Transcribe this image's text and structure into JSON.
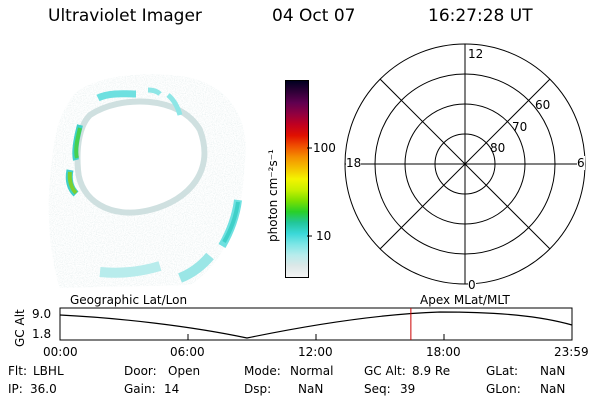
{
  "header": {
    "instrument": "Ultraviolet Imager",
    "date": "04 Oct 07",
    "time": "16:27:28 UT"
  },
  "colorbar": {
    "unit_label": "photon cm⁻²s⁻¹",
    "ticks": [
      "100",
      "10"
    ],
    "colors": [
      "#f4f4f4",
      "#dde8e8",
      "#b8ecec",
      "#7de6e6",
      "#3ad8d8",
      "#22c69a",
      "#28d028",
      "#7ce000",
      "#c8f000",
      "#f4f400",
      "#f4c000",
      "#f49000",
      "#f05000",
      "#e01000",
      "#c00020",
      "#900040",
      "#600050",
      "#300038",
      "#000020"
    ]
  },
  "polar_plot": {
    "mlt_labels": {
      "top": "12",
      "bottom": "0",
      "left": "18",
      "right": "6"
    },
    "lat_labels": [
      "80",
      "70",
      "60"
    ]
  },
  "timeline": {
    "y_axis_label": "GC Alt",
    "y_ticks": [
      "9.0",
      "1.8"
    ],
    "left_title": "Geographic Lat/Lon",
    "right_title": "Apex  MLat/MLT",
    "x_ticks": [
      "00:00",
      "06:00",
      "12:00",
      "18:00",
      "23:59"
    ],
    "current_time_fraction": 0.6853,
    "marker_color": "#cc0000"
  },
  "info": {
    "flt_label": "Flt:",
    "flt_value": "LBHL",
    "door_label": "Door:",
    "door_value": "Open",
    "mode_label": "Mode:",
    "mode_value": "Normal",
    "gcalt_label": "GC Alt:",
    "gcalt_value": "8.9 Re",
    "glat_label": "GLat:",
    "glat_value": "NaN",
    "ip_label": "IP:",
    "ip_value": "36.0",
    "gain_label": "Gain:",
    "gain_value": "14",
    "dsp_label": "Dsp:",
    "dsp_value": "NaN",
    "seq_label": "Seq:",
    "seq_value": "39",
    "glon_label": "GLon:",
    "glon_value": "NaN"
  }
}
